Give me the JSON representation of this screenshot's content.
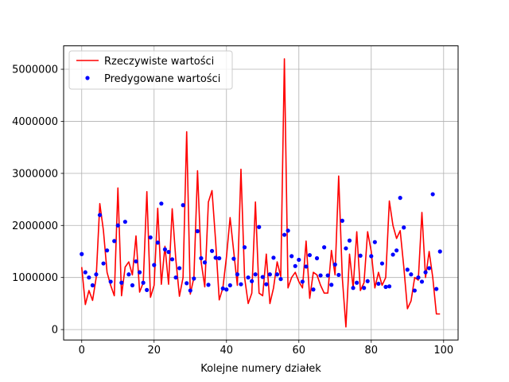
{
  "chart_data": {
    "type": "line",
    "title": "",
    "xlabel": "Kolejne numery działek",
    "ylabel": "",
    "xlim": [
      -5,
      104
    ],
    "ylim": [
      -200000,
      5450000
    ],
    "xticks": [
      0,
      20,
      40,
      60,
      80,
      100
    ],
    "xtick_labels": [
      "0",
      "20",
      "40",
      "60",
      "80",
      "100"
    ],
    "yticks": [
      0,
      1000000,
      2000000,
      3000000,
      4000000,
      5000000
    ],
    "ytick_labels": [
      "0",
      "1000000",
      "2000000",
      "3000000",
      "4000000",
      "5000000"
    ],
    "grid": true,
    "legend_position": "top-left",
    "x": [
      0,
      1,
      2,
      3,
      4,
      5,
      6,
      7,
      8,
      9,
      10,
      11,
      12,
      13,
      14,
      15,
      16,
      17,
      18,
      19,
      20,
      21,
      22,
      23,
      24,
      25,
      26,
      27,
      28,
      29,
      30,
      31,
      32,
      33,
      34,
      35,
      36,
      37,
      38,
      39,
      40,
      41,
      42,
      43,
      44,
      45,
      46,
      47,
      48,
      49,
      50,
      51,
      52,
      53,
      54,
      55,
      56,
      57,
      58,
      59,
      60,
      61,
      62,
      63,
      64,
      65,
      66,
      67,
      68,
      69,
      70,
      71,
      72,
      73,
      74,
      75,
      76,
      77,
      78,
      79,
      80,
      81,
      82,
      83,
      84,
      85,
      86,
      87,
      88,
      89,
      90,
      91,
      92,
      93,
      94,
      95,
      96,
      97,
      98,
      99
    ],
    "series": [
      {
        "name": "Rzeczywiste wartości",
        "style": "line",
        "color": "#ff0000",
        "values": [
          1200000,
          480000,
          750000,
          560000,
          1000000,
          2420000,
          1900000,
          1100000,
          850000,
          650000,
          2720000,
          650000,
          1200000,
          1300000,
          1050000,
          1800000,
          720000,
          900000,
          2650000,
          620000,
          850000,
          2330000,
          870000,
          1600000,
          870000,
          2320000,
          1350000,
          640000,
          1000000,
          3800000,
          680000,
          1000000,
          3050000,
          1300000,
          820000,
          2450000,
          2670000,
          1700000,
          570000,
          800000,
          1400000,
          2150000,
          1500000,
          850000,
          3080000,
          1000000,
          500000,
          700000,
          2450000,
          700000,
          650000,
          1450000,
          500000,
          800000,
          1300000,
          1020000,
          5200000,
          800000,
          1000000,
          1100000,
          920000,
          800000,
          1700000,
          600000,
          1100000,
          1050000,
          850000,
          700000,
          700000,
          1520000,
          1050000,
          2950000,
          1000000,
          50000,
          1450000,
          800000,
          1880000,
          750000,
          900000,
          1880000,
          1500000,
          800000,
          1100000,
          850000,
          1000000,
          2470000,
          2000000,
          1750000,
          1900000,
          1200000,
          400000,
          550000,
          1000000,
          950000,
          2250000,
          1000000,
          1500000,
          1000000,
          300000,
          300000
        ]
      },
      {
        "name": "Predygowane wartości",
        "style": "markers",
        "color": "#0000ff",
        "values": [
          1450000,
          1100000,
          1000000,
          850000,
          1060000,
          2200000,
          1270000,
          1520000,
          920000,
          1700000,
          2000000,
          900000,
          2070000,
          1060000,
          850000,
          1310000,
          1100000,
          900000,
          760000,
          1770000,
          1240000,
          1670000,
          2420000,
          1540000,
          1490000,
          1350000,
          1000000,
          1180000,
          2390000,
          890000,
          750000,
          980000,
          1890000,
          1370000,
          1290000,
          860000,
          1510000,
          1380000,
          1370000,
          790000,
          770000,
          850000,
          1360000,
          1060000,
          870000,
          1580000,
          1000000,
          930000,
          1060000,
          1970000,
          1010000,
          870000,
          1060000,
          1380000,
          1060000,
          970000,
          1820000,
          1900000,
          1410000,
          1220000,
          1340000,
          920000,
          1210000,
          1430000,
          770000,
          1370000,
          1040000,
          1580000,
          1040000,
          860000,
          1250000,
          1050000,
          2090000,
          1560000,
          1710000,
          800000,
          900000,
          1420000,
          800000,
          930000,
          1410000,
          1680000,
          880000,
          1270000,
          820000,
          830000,
          1440000,
          1520000,
          2530000,
          1960000,
          1150000,
          1060000,
          750000,
          1000000,
          920000,
          1100000,
          1180000,
          2600000,
          780000,
          1500000
        ]
      }
    ]
  }
}
